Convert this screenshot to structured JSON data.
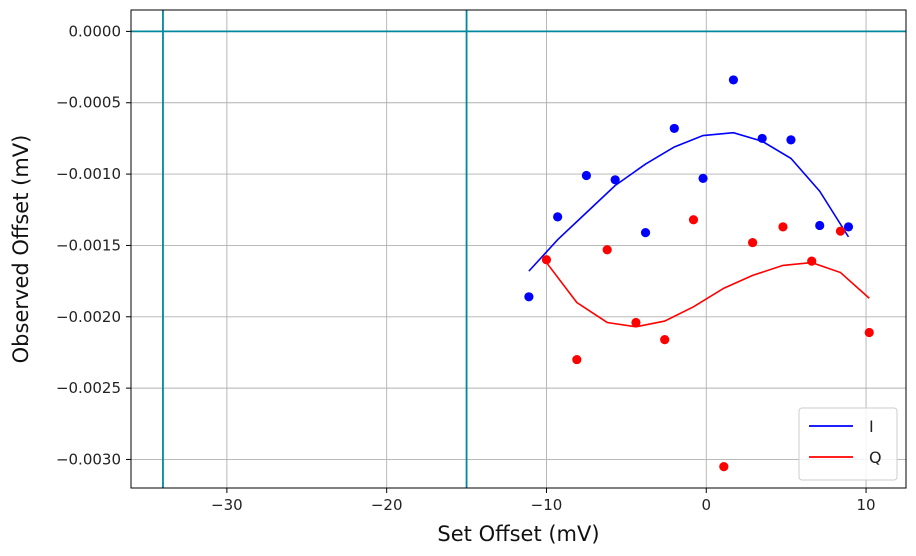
{
  "chart_data": {
    "type": "scatter",
    "title": "",
    "xlabel": "Set Offset (mV)",
    "ylabel": "Observed Offset (mV)",
    "xlim": [
      -36,
      12.5
    ],
    "ylim": [
      -0.0032,
      0.00015
    ],
    "xticks": [
      -30,
      -20,
      -10,
      0,
      10
    ],
    "xtick_labels": [
      "−30",
      "−20",
      "−10",
      "0",
      "10"
    ],
    "yticks": [
      0.0,
      -0.0005,
      -0.001,
      -0.0015,
      -0.002,
      -0.0025,
      -0.003
    ],
    "ytick_labels": [
      "0.0000",
      "−0.0005",
      "−0.0010",
      "−0.0015",
      "−0.0020",
      "−0.0025",
      "−0.0030"
    ],
    "grid": true,
    "legend_position": "lower-right",
    "reference_lines": {
      "color": "#00889e",
      "vertical_x": [
        -34,
        -15
      ],
      "horizontal_y": [
        0.0
      ]
    },
    "series": [
      {
        "name": "I",
        "color": "#0000ff",
        "points": {
          "x": [
            -11.1,
            -9.3,
            -7.5,
            -5.7,
            -3.8,
            -2.0,
            -0.2,
            1.7,
            3.5,
            5.3,
            7.1,
            8.9
          ],
          "y": [
            -0.00186,
            -0.0013,
            -0.00101,
            -0.00104,
            -0.00141,
            -0.00068,
            -0.00103,
            -0.00034,
            -0.00075,
            -0.00076,
            -0.00136,
            -0.00137
          ]
        },
        "line": {
          "x": [
            -11.1,
            -9.3,
            -7.5,
            -5.7,
            -3.8,
            -2.0,
            -0.2,
            1.7,
            3.5,
            5.3,
            7.1,
            8.9
          ],
          "y": [
            -0.00168,
            -0.00146,
            -0.00127,
            -0.00108,
            -0.00093,
            -0.00081,
            -0.00073,
            -0.00071,
            -0.00077,
            -0.00089,
            -0.00112,
            -0.00144
          ]
        }
      },
      {
        "name": "Q",
        "color": "#ff0000",
        "points": {
          "x": [
            -10.0,
            -8.1,
            -6.2,
            -4.4,
            -2.6,
            -0.8,
            1.1,
            2.9,
            4.8,
            6.6,
            8.4,
            10.2
          ],
          "y": [
            -0.0016,
            -0.0023,
            -0.00153,
            -0.00204,
            -0.00216,
            -0.00132,
            -0.00305,
            -0.00148,
            -0.00137,
            -0.00161,
            -0.0014,
            -0.00211
          ]
        },
        "line": {
          "x": [
            -10.0,
            -8.1,
            -6.2,
            -4.4,
            -2.6,
            -0.8,
            1.1,
            2.9,
            4.8,
            6.6,
            8.4,
            10.2
          ],
          "y": [
            -0.00162,
            -0.0019,
            -0.00204,
            -0.00207,
            -0.00203,
            -0.00193,
            -0.0018,
            -0.00171,
            -0.00164,
            -0.00162,
            -0.00169,
            -0.00187
          ]
        }
      }
    ]
  }
}
